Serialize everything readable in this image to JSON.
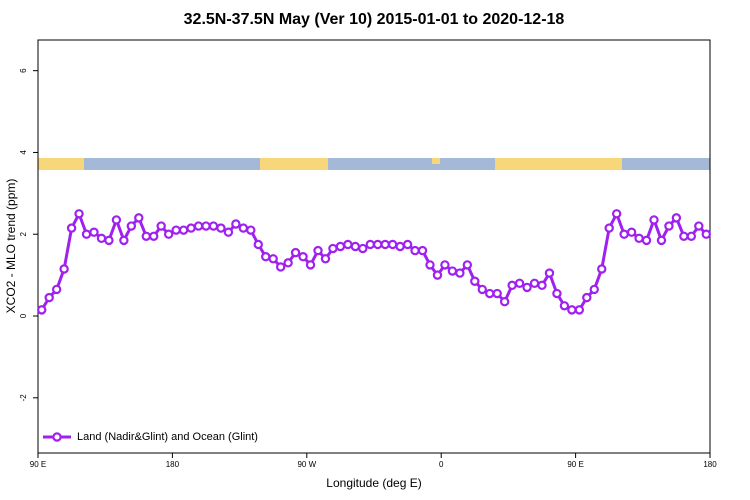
{
  "chart_data": {
    "type": "line",
    "title": "32.5N-37.5N May (Ver 10)   2015-01-01 to 2020-12-18",
    "xlabel": "Longitude (deg E)",
    "ylabel": "XCO2 - MLO trend (ppm)",
    "x": [
      92.5,
      97.5,
      102.5,
      107.5,
      112.5,
      117.5,
      122.5,
      127.5,
      132.5,
      137.5,
      142.5,
      147.5,
      152.5,
      157.5,
      162.5,
      167.5,
      172.5,
      177.5,
      182.5,
      187.5,
      192.5,
      197.5,
      202.5,
      207.5,
      212.5,
      217.5,
      222.5,
      227.5,
      232.5,
      237.5,
      242.5,
      247.5,
      252.5,
      257.5,
      262.5,
      267.5,
      272.5,
      277.5,
      282.5,
      287.5,
      292.5,
      297.5,
      302.5,
      307.5,
      312.5,
      317.5,
      322.5,
      327.5,
      332.5,
      337.5,
      342.5,
      347.5,
      352.5,
      357.5,
      362.5,
      367.5,
      372.5,
      377.5,
      382.5,
      387.5,
      392.5,
      397.5,
      402.5,
      407.5,
      412.5,
      417.5,
      422.5,
      427.5,
      432.5,
      437.5,
      442.5,
      447.5,
      452.5,
      457.5,
      462.5,
      467.5,
      472.5,
      477.5,
      482.5,
      487.5,
      492.5,
      497.5,
      502.5,
      507.5,
      512.5,
      517.5,
      522.5,
      527.5,
      532.5,
      537.5
    ],
    "series": [
      {
        "name": "Land (Nadir&Glint) and Ocean (Glint)",
        "color": "#a020f0",
        "values": [
          0.15,
          0.45,
          0.65,
          1.15,
          2.15,
          2.5,
          2.0,
          2.05,
          1.9,
          1.85,
          2.35,
          1.85,
          2.2,
          2.4,
          1.95,
          1.95,
          2.2,
          2.0,
          2.1,
          2.1,
          2.15,
          2.2,
          2.2,
          2.2,
          2.15,
          2.05,
          2.25,
          2.15,
          2.1,
          1.75,
          1.45,
          1.4,
          1.2,
          1.3,
          1.55,
          1.45,
          1.25,
          1.6,
          1.4,
          1.65,
          1.7,
          1.75,
          1.7,
          1.65,
          1.75,
          1.75,
          1.75,
          1.75,
          1.7,
          1.75,
          1.6,
          1.6,
          1.25,
          1.0,
          1.25,
          1.1,
          1.05,
          1.25,
          0.85,
          0.65,
          0.55,
          0.55,
          0.35,
          0.75,
          0.8,
          0.7,
          0.8,
          0.75,
          1.05,
          0.55,
          0.25,
          0.15,
          0.15,
          0.45,
          0.65,
          1.15,
          2.15,
          2.5,
          2.0,
          2.05,
          1.9,
          1.85,
          2.35,
          1.85,
          2.2,
          2.4,
          1.95,
          1.95,
          2.2,
          2.0
        ]
      }
    ],
    "xlim": [
      90,
      540
    ],
    "xticks": [
      {
        "value": 90,
        "label": "90 E"
      },
      180,
      {
        "value": 270,
        "label": "90 W"
      },
      {
        "value": 360,
        "label": "0"
      },
      {
        "value": 450,
        "label": "90 E"
      },
      {
        "value": 540,
        "label": "180"
      }
    ],
    "ylim": [
      -3.35,
      6.75
    ],
    "yticks": [
      -2,
      0,
      2,
      4,
      6
    ],
    "legend": "bottom-left"
  }
}
